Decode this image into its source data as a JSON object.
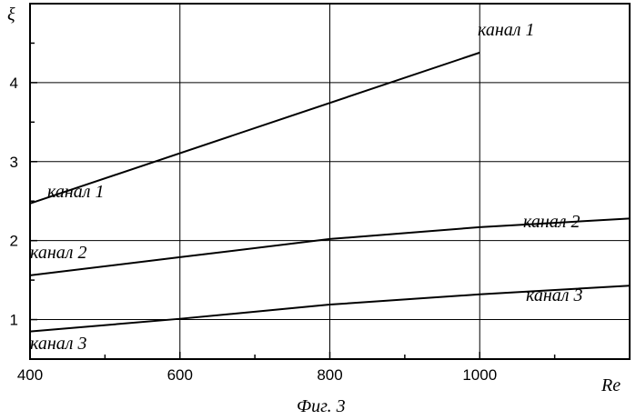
{
  "chart_data": {
    "type": "line",
    "xlabel": "Re",
    "ylabel": "ξ",
    "caption": "Фиг. 3",
    "xlim": [
      400,
      1200
    ],
    "ylim": [
      0.5,
      5.0
    ],
    "x_ticks": [
      "400",
      "600",
      "800",
      "1000"
    ],
    "y_ticks": [
      "1",
      "2",
      "3",
      "4"
    ],
    "grid": true,
    "series": [
      {
        "name": "канал 1",
        "x": [
          400,
          1000
        ],
        "y": [
          2.47,
          4.38
        ]
      },
      {
        "name": "канал 2",
        "x": [
          400,
          600,
          800,
          1000,
          1200
        ],
        "y": [
          1.56,
          1.79,
          2.02,
          2.17,
          2.28
        ]
      },
      {
        "name": "канал 3",
        "x": [
          400,
          600,
          800,
          1000,
          1200
        ],
        "y": [
          0.85,
          1.01,
          1.19,
          1.32,
          1.43
        ]
      }
    ]
  }
}
